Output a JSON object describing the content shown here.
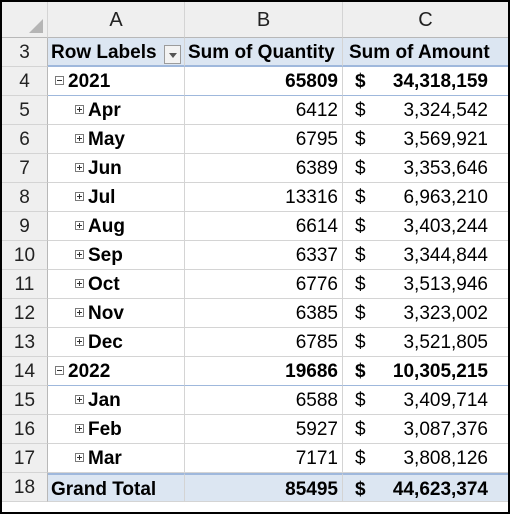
{
  "columns": [
    "A",
    "B",
    "C"
  ],
  "header": {
    "row": "3",
    "row_labels": "Row Labels",
    "sum_quantity": "Sum of Quantity",
    "sum_amount": "Sum of Amount"
  },
  "rows": [
    {
      "row": "4",
      "label": "2021",
      "level": 0,
      "expanded": true,
      "quantity": "65809",
      "currency": "$",
      "amount": "34,318,159"
    },
    {
      "row": "5",
      "label": "Apr",
      "level": 1,
      "expanded": false,
      "quantity": "6412",
      "currency": "$",
      "amount": "3,324,542"
    },
    {
      "row": "6",
      "label": "May",
      "level": 1,
      "expanded": false,
      "quantity": "6795",
      "currency": "$",
      "amount": "3,569,921"
    },
    {
      "row": "7",
      "label": "Jun",
      "level": 1,
      "expanded": false,
      "quantity": "6389",
      "currency": "$",
      "amount": "3,353,646"
    },
    {
      "row": "8",
      "label": "Jul",
      "level": 1,
      "expanded": false,
      "quantity": "13316",
      "currency": "$",
      "amount": "6,963,210"
    },
    {
      "row": "9",
      "label": "Aug",
      "level": 1,
      "expanded": false,
      "quantity": "6614",
      "currency": "$",
      "amount": "3,403,244"
    },
    {
      "row": "10",
      "label": "Sep",
      "level": 1,
      "expanded": false,
      "quantity": "6337",
      "currency": "$",
      "amount": "3,344,844"
    },
    {
      "row": "11",
      "label": "Oct",
      "level": 1,
      "expanded": false,
      "quantity": "6776",
      "currency": "$",
      "amount": "3,513,946"
    },
    {
      "row": "12",
      "label": "Nov",
      "level": 1,
      "expanded": false,
      "quantity": "6385",
      "currency": "$",
      "amount": "3,323,002"
    },
    {
      "row": "13",
      "label": "Dec",
      "level": 1,
      "expanded": false,
      "quantity": "6785",
      "currency": "$",
      "amount": "3,521,805"
    },
    {
      "row": "14",
      "label": "2022",
      "level": 0,
      "expanded": true,
      "quantity": "19686",
      "currency": "$",
      "amount": "10,305,215"
    },
    {
      "row": "15",
      "label": "Jan",
      "level": 1,
      "expanded": false,
      "quantity": "6588",
      "currency": "$",
      "amount": "3,409,714"
    },
    {
      "row": "16",
      "label": "Feb",
      "level": 1,
      "expanded": false,
      "quantity": "5927",
      "currency": "$",
      "amount": "3,087,376"
    },
    {
      "row": "17",
      "label": "Mar",
      "level": 1,
      "expanded": false,
      "quantity": "7171",
      "currency": "$",
      "amount": "3,808,126"
    }
  ],
  "grand_total": {
    "row": "18",
    "label": "Grand Total",
    "quantity": "85495",
    "currency": "$",
    "amount": "44,623,374"
  },
  "icons": {
    "expand": "plus-box-icon",
    "collapse": "minus-box-icon",
    "filter": "filter-dropdown-icon"
  }
}
